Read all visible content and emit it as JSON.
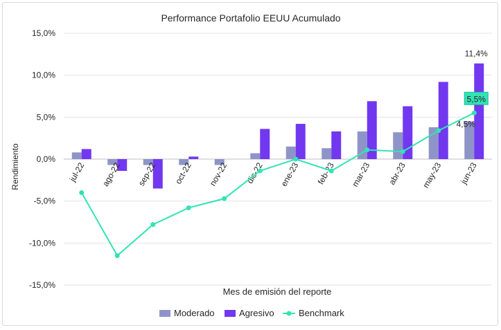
{
  "chart_data": {
    "type": "bar",
    "title": "Performance Portafolio EEUU Acumulado",
    "xlabel": "Mes de emisión del reporte",
    "ylabel": "Rendimiento",
    "ylim": [
      -15,
      15
    ],
    "yticks": [
      15,
      10,
      5,
      0,
      -5,
      -10,
      -15
    ],
    "ytick_labels": [
      "15,0%",
      "10,0%",
      "5,0%",
      "0,0%",
      "-5,0%",
      "-10,0%",
      "-15,0%"
    ],
    "categories": [
      "jul-22",
      "ago-22",
      "sep-22",
      "oct-22",
      "nov-22",
      "dic-22",
      "ene-23",
      "feb-23",
      "mar-23",
      "abr-23",
      "may-23",
      "jun-23"
    ],
    "grid": true,
    "legend_position": "bottom",
    "series": [
      {
        "name": "Moderado",
        "kind": "bar",
        "color": "#8f94c8",
        "values": [
          0.8,
          -0.7,
          -0.7,
          -0.7,
          -0.7,
          0.7,
          1.5,
          1.3,
          3.3,
          3.2,
          3.8,
          4.5
        ]
      },
      {
        "name": "Agresivo",
        "kind": "bar",
        "color": "#7138f0",
        "values": [
          1.2,
          -1.4,
          -3.5,
          0.3,
          0.0,
          3.6,
          4.2,
          3.3,
          6.9,
          6.3,
          9.2,
          11.4
        ]
      },
      {
        "name": "Benchmark",
        "kind": "line",
        "color": "#33e3b5",
        "values": [
          -4.0,
          -11.5,
          -7.8,
          -5.8,
          -4.7,
          -1.4,
          0.0,
          -1.4,
          1.1,
          0.9,
          3.4,
          5.5
        ]
      }
    ],
    "annotations": [
      {
        "series": "Agresivo",
        "category": "jun-23",
        "text": "11,4%"
      },
      {
        "series": "Moderado",
        "category": "jun-23",
        "text": "4,5%"
      },
      {
        "series": "Benchmark",
        "category": "jun-23",
        "text": "5,5%",
        "highlight": "#33e3b5"
      }
    ]
  }
}
